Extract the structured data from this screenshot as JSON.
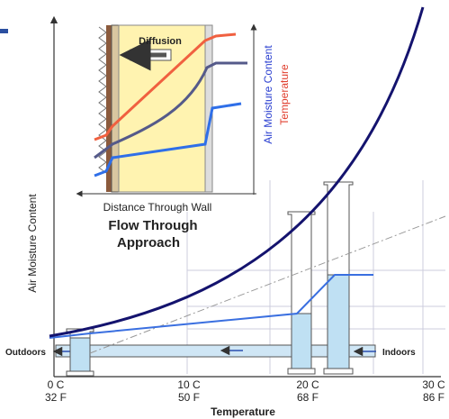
{
  "inset": {
    "arrow_label": "Diffusion",
    "legend_moisture": "Air Moisture Content",
    "legend_temperature": "Temperature",
    "x_axis_label": "Distance Through Wall"
  },
  "caption": {
    "line1": "Flow Through",
    "line2": "Approach"
  },
  "main": {
    "y_axis_label": "Air Moisture Content",
    "x_axis_label": "Temperature",
    "outdoors": "Outdoors",
    "indoors": "Indoors",
    "ticks": [
      [
        "0 C",
        "32 F"
      ],
      [
        "10 C",
        "50 F"
      ],
      [
        "20 C",
        "68 F"
      ],
      [
        "30 C",
        "86 F"
      ]
    ]
  }
}
